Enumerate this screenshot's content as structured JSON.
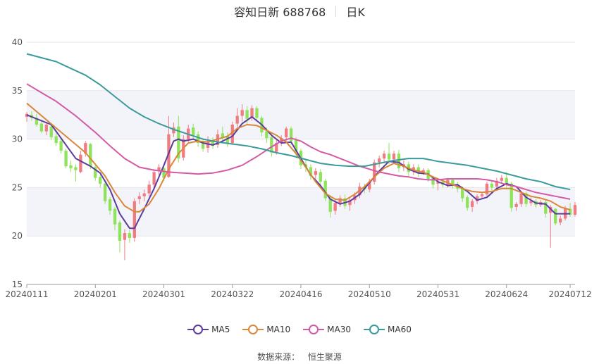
{
  "title": {
    "main": "容知日新 688768",
    "sub": "日K"
  },
  "source": {
    "label": "数据来源：",
    "value": "恒生聚源"
  },
  "legend": [
    {
      "name": "MA5",
      "color": "#5b3c9e"
    },
    {
      "name": "MA10",
      "color": "#d9883a"
    },
    {
      "name": "MA30",
      "color": "#d55aa5"
    },
    {
      "name": "MA60",
      "color": "#3b9a9c"
    }
  ],
  "chart_data": {
    "type": "candlestick",
    "ylim": [
      15,
      40
    ],
    "yticks": [
      15,
      20,
      25,
      30,
      35,
      40
    ],
    "xticks": [
      {
        "label": "20240111",
        "at": 0
      },
      {
        "label": "20240201",
        "at": 14
      },
      {
        "label": "20240301",
        "at": 28
      },
      {
        "label": "20240322",
        "at": 42
      },
      {
        "label": "20240416",
        "at": 56
      },
      {
        "label": "20240510",
        "at": 70
      },
      {
        "label": "20240531",
        "at": 84
      },
      {
        "label": "20240624",
        "at": 98
      },
      {
        "label": "20240712",
        "at": 111
      }
    ],
    "up_color": "#f07c82",
    "down_color": "#8fe35a",
    "candles": [
      [
        32.3,
        32.6,
        31.8,
        32.8
      ],
      [
        32.5,
        32.2,
        31.9,
        32.9
      ],
      [
        32.2,
        31.5,
        31.3,
        32.6
      ],
      [
        31.6,
        30.8,
        30.6,
        32.0
      ],
      [
        30.8,
        31.5,
        30.4,
        31.8
      ],
      [
        31.3,
        30.2,
        29.9,
        31.6
      ],
      [
        30.3,
        29.6,
        29.3,
        30.6
      ],
      [
        29.8,
        28.8,
        28.5,
        30.0
      ],
      [
        28.8,
        27.2,
        27.0,
        29.0
      ],
      [
        27.3,
        27.0,
        26.6,
        27.8
      ],
      [
        27.1,
        26.8,
        25.6,
        27.4
      ],
      [
        26.6,
        28.4,
        26.5,
        28.8
      ],
      [
        28.5,
        29.6,
        28.2,
        29.8
      ],
      [
        29.5,
        27.2,
        26.9,
        29.6
      ],
      [
        27.1,
        26.0,
        25.7,
        27.5
      ],
      [
        26.1,
        25.4,
        25.0,
        26.4
      ],
      [
        25.4,
        23.6,
        23.3,
        25.6
      ],
      [
        23.8,
        22.6,
        22.2,
        24.0
      ],
      [
        22.8,
        21.2,
        20.6,
        23.0
      ],
      [
        21.4,
        19.5,
        18.3,
        21.6
      ],
      [
        19.6,
        20.3,
        17.5,
        20.7
      ],
      [
        20.3,
        19.8,
        19.3,
        20.6
      ],
      [
        19.8,
        23.6,
        19.4,
        23.9
      ],
      [
        23.8,
        24.1,
        23.3,
        24.5
      ],
      [
        24.1,
        24.4,
        23.6,
        24.8
      ],
      [
        24.4,
        25.3,
        24.1,
        25.7
      ],
      [
        25.3,
        26.6,
        25.0,
        26.9
      ],
      [
        26.7,
        27.1,
        26.3,
        27.4
      ],
      [
        27.0,
        26.0,
        25.7,
        27.3
      ],
      [
        26.1,
        30.5,
        26.0,
        32.4
      ],
      [
        30.6,
        31.2,
        30.2,
        31.7
      ],
      [
        31.3,
        28.0,
        27.6,
        32.4
      ],
      [
        28.1,
        30.0,
        27.8,
        30.4
      ],
      [
        30.0,
        31.1,
        29.7,
        31.5
      ],
      [
        31.2,
        30.4,
        30.0,
        31.6
      ],
      [
        30.5,
        29.6,
        29.2,
        30.8
      ],
      [
        29.6,
        29.0,
        28.7,
        30.0
      ],
      [
        29.1,
        29.8,
        28.6,
        30.3
      ],
      [
        29.9,
        29.3,
        29.0,
        30.2
      ],
      [
        29.4,
        30.5,
        29.1,
        31.0
      ],
      [
        30.6,
        30.2,
        29.6,
        31.3
      ],
      [
        30.3,
        29.5,
        29.2,
        30.7
      ],
      [
        29.6,
        31.5,
        29.4,
        31.8
      ],
      [
        31.6,
        32.4,
        31.1,
        33.2
      ],
      [
        32.4,
        33.0,
        31.8,
        33.6
      ],
      [
        33.0,
        32.1,
        31.5,
        33.4
      ],
      [
        32.2,
        33.2,
        31.9,
        33.5
      ],
      [
        33.2,
        32.2,
        31.8,
        33.4
      ],
      [
        32.2,
        30.7,
        30.3,
        32.4
      ],
      [
        30.8,
        30.1,
        29.6,
        31.2
      ],
      [
        30.2,
        28.6,
        28.2,
        30.6
      ],
      [
        28.7,
        29.6,
        28.4,
        29.9
      ],
      [
        29.6,
        30.1,
        29.3,
        30.4
      ],
      [
        30.2,
        31.1,
        29.8,
        31.3
      ],
      [
        31.1,
        29.8,
        29.4,
        31.3
      ],
      [
        29.9,
        28.7,
        28.3,
        30.2
      ],
      [
        28.8,
        27.3,
        26.9,
        29.0
      ],
      [
        27.4,
        27.1,
        26.6,
        27.9
      ],
      [
        27.1,
        26.2,
        25.8,
        27.4
      ],
      [
        26.3,
        26.7,
        25.9,
        27.0
      ],
      [
        26.6,
        25.6,
        25.2,
        26.9
      ],
      [
        25.7,
        23.9,
        23.6,
        25.9
      ],
      [
        23.9,
        22.5,
        21.9,
        24.2
      ],
      [
        22.6,
        23.4,
        22.2,
        23.7
      ],
      [
        23.4,
        23.9,
        23.0,
        24.2
      ],
      [
        23.9,
        23.1,
        22.8,
        24.3
      ],
      [
        23.2,
        23.7,
        22.6,
        23.9
      ],
      [
        23.7,
        24.2,
        23.3,
        24.5
      ],
      [
        24.2,
        25.1,
        23.9,
        25.5
      ],
      [
        25.1,
        24.8,
        24.4,
        25.4
      ],
      [
        24.8,
        25.6,
        24.5,
        25.9
      ],
      [
        25.6,
        27.6,
        25.3,
        27.9
      ],
      [
        27.6,
        28.0,
        27.1,
        28.3
      ],
      [
        28.0,
        28.5,
        27.5,
        28.8
      ],
      [
        28.5,
        27.9,
        27.4,
        29.6
      ],
      [
        27.9,
        28.5,
        27.6,
        28.8
      ],
      [
        28.5,
        27.0,
        26.6,
        28.9
      ],
      [
        27.1,
        27.4,
        26.7,
        27.8
      ],
      [
        27.4,
        26.6,
        26.1,
        27.7
      ],
      [
        26.7,
        27.1,
        26.3,
        27.4
      ],
      [
        27.1,
        26.5,
        26.1,
        27.4
      ],
      [
        26.6,
        26.8,
        26.3,
        27.0
      ],
      [
        26.8,
        25.9,
        25.6,
        27.0
      ],
      [
        26.0,
        25.3,
        24.9,
        26.2
      ],
      [
        25.4,
        25.6,
        24.7,
        25.9
      ],
      [
        25.6,
        25.3,
        25.0,
        25.8
      ],
      [
        25.3,
        25.8,
        25.0,
        26.0
      ],
      [
        25.8,
        25.2,
        24.9,
        26.0
      ],
      [
        25.3,
        24.9,
        24.5,
        25.6
      ],
      [
        24.9,
        23.9,
        23.5,
        25.1
      ],
      [
        24.0,
        22.9,
        22.6,
        24.2
      ],
      [
        23.0,
        23.6,
        22.5,
        23.8
      ],
      [
        23.6,
        24.1,
        23.3,
        24.3
      ],
      [
        24.1,
        24.3,
        23.8,
        24.5
      ],
      [
        24.3,
        25.4,
        24.1,
        25.6
      ],
      [
        25.4,
        25.0,
        24.7,
        25.7
      ],
      [
        25.1,
        25.7,
        24.8,
        26.0
      ],
      [
        25.7,
        26.0,
        25.4,
        26.3
      ],
      [
        26.0,
        25.4,
        25.0,
        26.6
      ],
      [
        25.4,
        22.9,
        22.5,
        25.6
      ],
      [
        23.0,
        23.3,
        22.6,
        23.5
      ],
      [
        23.3,
        24.4,
        23.0,
        24.6
      ],
      [
        24.4,
        23.3,
        23.0,
        24.6
      ],
      [
        23.4,
        23.6,
        23.1,
        24.0
      ],
      [
        23.6,
        23.2,
        22.9,
        23.8
      ],
      [
        23.2,
        23.5,
        23.0,
        23.7
      ],
      [
        23.5,
        22.3,
        21.9,
        23.7
      ],
      [
        22.4,
        23.0,
        18.8,
        23.2
      ],
      [
        22.8,
        21.3,
        21.1,
        22.9
      ],
      [
        21.4,
        21.8,
        21.1,
        22.1
      ],
      [
        21.8,
        22.9,
        21.6,
        23.1
      ],
      [
        22.8,
        22.2,
        22.0,
        23.4
      ],
      [
        22.2,
        23.2,
        22.0,
        23.5
      ]
    ],
    "ma": {
      "MA5": [
        [
          0,
          32.5
        ],
        [
          5,
          31.5
        ],
        [
          10,
          28.0
        ],
        [
          13,
          27.2
        ],
        [
          15,
          26.5
        ],
        [
          17,
          24.8
        ],
        [
          19,
          22.3
        ],
        [
          21,
          20.8
        ],
        [
          22,
          20.8
        ],
        [
          24,
          22.8
        ],
        [
          26,
          24.9
        ],
        [
          28,
          27.3
        ],
        [
          30,
          29.8
        ],
        [
          31,
          30.0
        ],
        [
          32,
          29.8
        ],
        [
          34,
          30.0
        ],
        [
          36,
          29.6
        ],
        [
          38,
          29.4
        ],
        [
          40,
          29.8
        ],
        [
          42,
          30.3
        ],
        [
          44,
          31.6
        ],
        [
          46,
          32.3
        ],
        [
          48,
          31.5
        ],
        [
          50,
          30.4
        ],
        [
          52,
          29.6
        ],
        [
          54,
          29.7
        ],
        [
          56,
          28.0
        ],
        [
          58,
          26.3
        ],
        [
          60,
          25.2
        ],
        [
          62,
          23.8
        ],
        [
          64,
          23.3
        ],
        [
          66,
          23.6
        ],
        [
          68,
          24.3
        ],
        [
          70,
          25.5
        ],
        [
          72,
          26.7
        ],
        [
          74,
          27.7
        ],
        [
          76,
          27.6
        ],
        [
          78,
          26.9
        ],
        [
          80,
          26.5
        ],
        [
          82,
          26.4
        ],
        [
          84,
          25.6
        ],
        [
          86,
          25.2
        ],
        [
          88,
          25.3
        ],
        [
          90,
          24.6
        ],
        [
          92,
          23.7
        ],
        [
          94,
          24.0
        ],
        [
          96,
          24.9
        ],
        [
          98,
          25.4
        ],
        [
          100,
          25.1
        ],
        [
          102,
          24.0
        ],
        [
          104,
          23.4
        ],
        [
          106,
          23.3
        ],
        [
          108,
          22.3
        ],
        [
          110,
          22.3
        ],
        [
          111,
          22.3
        ]
      ],
      "MA10": [
        [
          0,
          33.7
        ],
        [
          4,
          32.0
        ],
        [
          8,
          30.3
        ],
        [
          12,
          28.6
        ],
        [
          16,
          26.2
        ],
        [
          18,
          24.5
        ],
        [
          20,
          23.1
        ],
        [
          22,
          22.5
        ],
        [
          23,
          22.5
        ],
        [
          25,
          23.3
        ],
        [
          27,
          24.9
        ],
        [
          29,
          26.9
        ],
        [
          31,
          28.5
        ],
        [
          33,
          29.6
        ],
        [
          35,
          29.8
        ],
        [
          37,
          29.7
        ],
        [
          39,
          30.0
        ],
        [
          41,
          30.3
        ],
        [
          43,
          31.1
        ],
        [
          45,
          31.5
        ],
        [
          47,
          31.4
        ],
        [
          49,
          30.9
        ],
        [
          51,
          30.4
        ],
        [
          53,
          29.7
        ],
        [
          55,
          28.5
        ],
        [
          57,
          27.1
        ],
        [
          59,
          25.6
        ],
        [
          61,
          24.4
        ],
        [
          63,
          23.8
        ],
        [
          65,
          23.7
        ],
        [
          67,
          24.3
        ],
        [
          69,
          25.1
        ],
        [
          71,
          26.1
        ],
        [
          73,
          27.0
        ],
        [
          75,
          27.5
        ],
        [
          77,
          27.2
        ],
        [
          79,
          26.8
        ],
        [
          81,
          26.6
        ],
        [
          83,
          26.1
        ],
        [
          85,
          25.7
        ],
        [
          87,
          25.3
        ],
        [
          89,
          24.9
        ],
        [
          91,
          24.6
        ],
        [
          93,
          24.5
        ],
        [
          95,
          24.6
        ],
        [
          97,
          24.9
        ],
        [
          99,
          24.9
        ],
        [
          101,
          24.5
        ],
        [
          103,
          24.1
        ],
        [
          105,
          23.9
        ],
        [
          107,
          23.6
        ],
        [
          109,
          23.0
        ],
        [
          111,
          22.7
        ]
      ],
      "MA30": [
        [
          0,
          35.7
        ],
        [
          3,
          34.8
        ],
        [
          6,
          33.9
        ],
        [
          10,
          32.4
        ],
        [
          14,
          30.7
        ],
        [
          17,
          29.3
        ],
        [
          20,
          28.0
        ],
        [
          23,
          27.1
        ],
        [
          26,
          26.8
        ],
        [
          29,
          26.6
        ],
        [
          32,
          26.5
        ],
        [
          35,
          26.4
        ],
        [
          38,
          26.5
        ],
        [
          41,
          26.8
        ],
        [
          44,
          27.3
        ],
        [
          47,
          28.2
        ],
        [
          50,
          29.2
        ],
        [
          52,
          29.8
        ],
        [
          54,
          30.1
        ],
        [
          56,
          29.8
        ],
        [
          58,
          29.2
        ],
        [
          60,
          28.7
        ],
        [
          62,
          28.4
        ],
        [
          64,
          28.0
        ],
        [
          66,
          27.6
        ],
        [
          68,
          27.2
        ],
        [
          70,
          26.9
        ],
        [
          72,
          26.6
        ],
        [
          74,
          26.4
        ],
        [
          76,
          26.2
        ],
        [
          78,
          26.1
        ],
        [
          80,
          25.9
        ],
        [
          82,
          25.8
        ],
        [
          84,
          25.8
        ],
        [
          86,
          25.9
        ],
        [
          88,
          25.9
        ],
        [
          90,
          25.9
        ],
        [
          92,
          25.9
        ],
        [
          94,
          25.8
        ],
        [
          96,
          25.6
        ],
        [
          98,
          25.3
        ],
        [
          100,
          25.1
        ],
        [
          102,
          24.8
        ],
        [
          104,
          24.5
        ],
        [
          106,
          24.3
        ],
        [
          108,
          24.1
        ],
        [
          110,
          23.9
        ],
        [
          111,
          23.8
        ]
      ],
      "MA60": [
        [
          0,
          38.8
        ],
        [
          3,
          38.4
        ],
        [
          6,
          38.0
        ],
        [
          9,
          37.3
        ],
        [
          12,
          36.6
        ],
        [
          15,
          35.6
        ],
        [
          18,
          34.4
        ],
        [
          21,
          33.2
        ],
        [
          24,
          32.3
        ],
        [
          27,
          31.6
        ],
        [
          30,
          31.0
        ],
        [
          33,
          30.5
        ],
        [
          36,
          30.0
        ],
        [
          39,
          29.7
        ],
        [
          42,
          29.5
        ],
        [
          45,
          29.3
        ],
        [
          48,
          29.0
        ],
        [
          51,
          28.6
        ],
        [
          54,
          28.3
        ],
        [
          57,
          27.9
        ],
        [
          60,
          27.5
        ],
        [
          63,
          27.3
        ],
        [
          66,
          27.2
        ],
        [
          69,
          27.2
        ],
        [
          72,
          27.5
        ],
        [
          75,
          27.8
        ],
        [
          78,
          28.0
        ],
        [
          81,
          28.0
        ],
        [
          84,
          27.7
        ],
        [
          87,
          27.5
        ],
        [
          90,
          27.3
        ],
        [
          93,
          27.0
        ],
        [
          96,
          26.7
        ],
        [
          99,
          26.3
        ],
        [
          102,
          25.9
        ],
        [
          105,
          25.6
        ],
        [
          108,
          25.1
        ],
        [
          111,
          24.8
        ]
      ]
    }
  }
}
